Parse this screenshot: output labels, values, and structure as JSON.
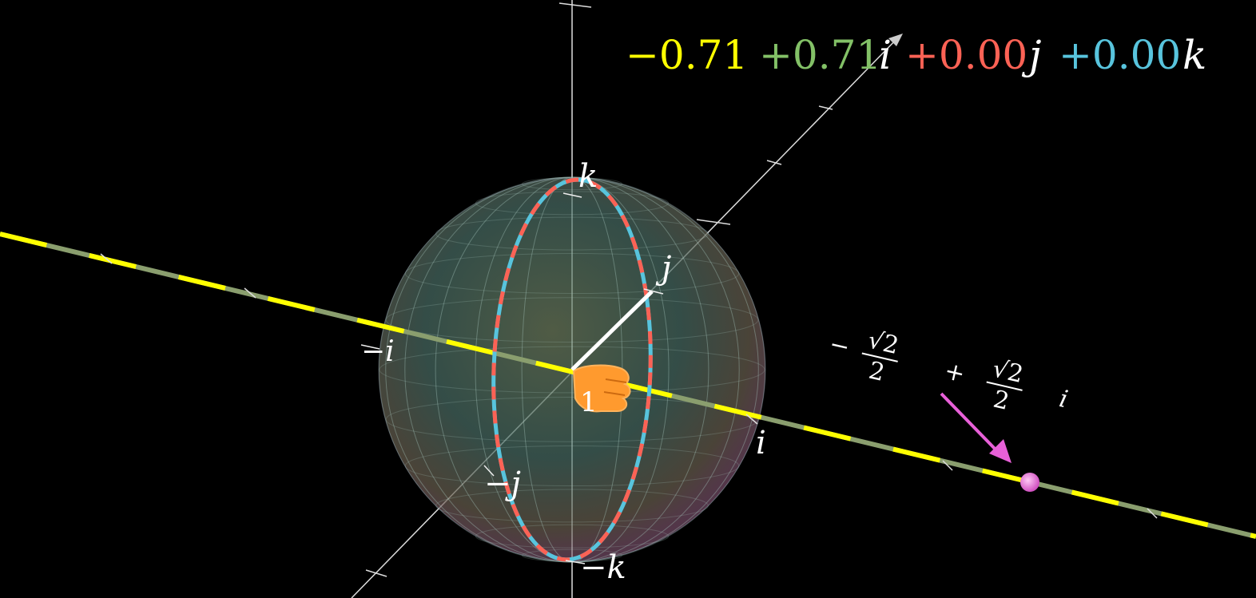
{
  "quaternion": {
    "real": "−0.71",
    "i_coef": "+0.71",
    "i_unit": "i",
    "j_coef": "+0.00",
    "j_unit": "j",
    "k_coef": "+0.00",
    "k_unit": "k"
  },
  "axis_labels": {
    "k": "k",
    "j": "j",
    "neg_i": "−i",
    "i": "i",
    "neg_j": "−j",
    "neg_k": "−k",
    "one": "1"
  },
  "annotation": {
    "minus1": "−",
    "num1": "√2",
    "den1": "2",
    "plus": "+",
    "num2": "√2",
    "den2": "2",
    "unit": "i"
  },
  "colors": {
    "real": "#ffff00",
    "i": "#83c167",
    "j": "#fc6255",
    "k": "#58c4dd",
    "white": "#ffffff",
    "pointer": "#ff9a2e",
    "marker": "#e860d8"
  },
  "icons": {
    "pointer": "hand-pointer-icon",
    "arrow": "pink-arrow-icon"
  }
}
